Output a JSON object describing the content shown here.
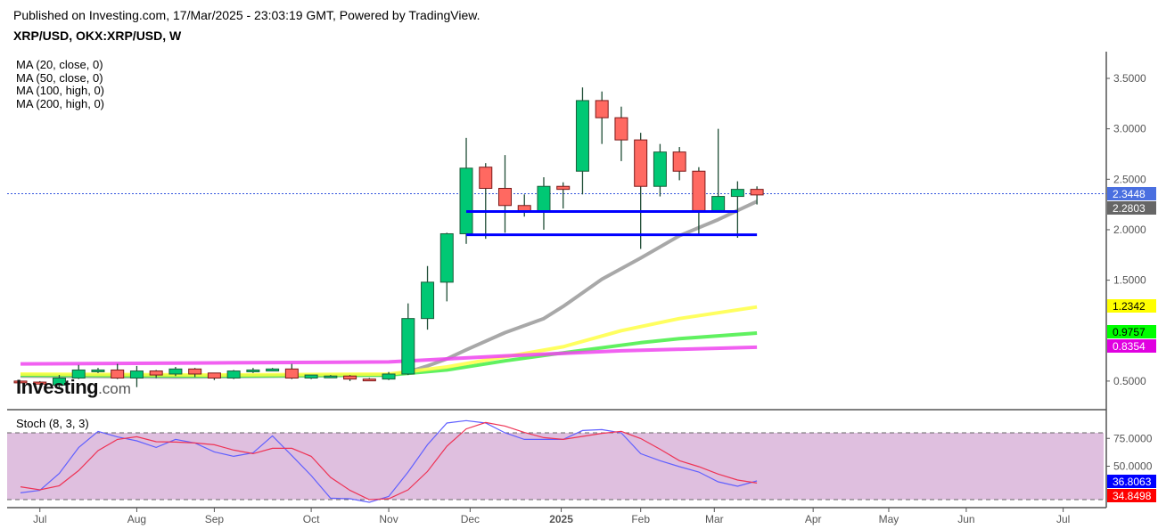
{
  "header": {
    "published": "Published on Investing.com, 17/Mar/2025 - 23:03:19 GMT, Powered by TradingView.",
    "symbol": "XRP/USD, OKX:XRP/USD, W"
  },
  "logo": {
    "brand": "Investing",
    "suffix": ".com"
  },
  "indicators": {
    "ma": [
      "MA (20, close, 0)",
      "MA (50, close, 0)",
      "MA (100, high, 0)",
      "MA (200, high, 0)"
    ],
    "stoch_title": "Stoch (8, 3, 3)"
  },
  "colors": {
    "up": "#00c874",
    "down": "#ff6961",
    "up_border": "#1b5e3b",
    "down_border": "#7b1a1a",
    "wick": "#1f4d36",
    "ma20": "#999999",
    "ma50": "#44ee44",
    "ma100": "#ffff44",
    "ma200": "#ee44ee",
    "support": "#0000ff",
    "stoch_k": "#6060ff",
    "stoch_d": "#ee3355",
    "stoch_bg": "#dfbfdf"
  },
  "chart_data": [
    {
      "type": "candlestick",
      "title": "XRP/USD, OKX:XRP/USD, W",
      "ylim": [
        0.35,
        3.75
      ],
      "y_ticks": [
        "3.5000",
        "3.0000",
        "2.5000",
        "2.0000",
        "1.5000",
        "0.5000"
      ],
      "y_tick_values": [
        3.5,
        3.0,
        2.5,
        2.0,
        1.5,
        0.5
      ],
      "x_labels": [
        {
          "label": "Jul",
          "week": 1
        },
        {
          "label": "Aug",
          "week": 6
        },
        {
          "label": "Sep",
          "week": 10
        },
        {
          "label": "Oct",
          "week": 15
        },
        {
          "label": "Nov",
          "week": 19
        },
        {
          "label": "Dec",
          "week": 23.2
        },
        {
          "label": "2025",
          "week": 27.9,
          "bold": true
        },
        {
          "label": "Feb",
          "week": 32
        },
        {
          "label": "Mar",
          "week": 35.8
        },
        {
          "label": "Apr",
          "week": 40.9
        },
        {
          "label": "May",
          "week": 44.8
        },
        {
          "label": "Jun",
          "week": 48.8
        },
        {
          "label": "Jul",
          "week": 53.8
        }
      ],
      "ohlc": [
        [
          0.5,
          0.5,
          0.48,
          0.49
        ],
        [
          0.49,
          0.5,
          0.46,
          0.47
        ],
        [
          0.46,
          0.56,
          0.43,
          0.53
        ],
        [
          0.53,
          0.66,
          0.52,
          0.61
        ],
        [
          0.61,
          0.63,
          0.58,
          0.61
        ],
        [
          0.61,
          0.67,
          0.52,
          0.53
        ],
        [
          0.53,
          0.65,
          0.44,
          0.6
        ],
        [
          0.6,
          0.61,
          0.53,
          0.56
        ],
        [
          0.57,
          0.64,
          0.55,
          0.62
        ],
        [
          0.62,
          0.63,
          0.54,
          0.57
        ],
        [
          0.58,
          0.58,
          0.51,
          0.53
        ],
        [
          0.53,
          0.61,
          0.52,
          0.6
        ],
        [
          0.6,
          0.63,
          0.58,
          0.61
        ],
        [
          0.6,
          0.63,
          0.6,
          0.62
        ],
        [
          0.62,
          0.67,
          0.52,
          0.53
        ],
        [
          0.53,
          0.56,
          0.52,
          0.56
        ],
        [
          0.55,
          0.56,
          0.54,
          0.55
        ],
        [
          0.55,
          0.56,
          0.5,
          0.52
        ],
        [
          0.52,
          0.53,
          0.51,
          0.51
        ],
        [
          0.52,
          0.59,
          0.51,
          0.57
        ],
        [
          0.57,
          1.27,
          0.56,
          1.12
        ],
        [
          1.12,
          1.64,
          1.01,
          1.48
        ],
        [
          1.48,
          1.97,
          1.29,
          1.96
        ],
        [
          1.96,
          2.91,
          1.86,
          2.61
        ],
        [
          2.62,
          2.66,
          1.91,
          2.41
        ],
        [
          2.41,
          2.74,
          1.97,
          2.24
        ],
        [
          2.24,
          2.35,
          2.13,
          2.18
        ],
        [
          2.18,
          2.52,
          2.0,
          2.43
        ],
        [
          2.43,
          2.47,
          2.21,
          2.4
        ],
        [
          2.58,
          3.41,
          2.35,
          3.28
        ],
        [
          3.28,
          3.37,
          2.85,
          3.11
        ],
        [
          3.11,
          3.22,
          2.68,
          2.89
        ],
        [
          2.89,
          2.96,
          1.81,
          2.43
        ],
        [
          2.43,
          2.85,
          2.33,
          2.77
        ],
        [
          2.77,
          2.82,
          2.49,
          2.58
        ],
        [
          2.58,
          2.62,
          1.96,
          2.19
        ],
        [
          2.19,
          3.0,
          2.19,
          2.33
        ],
        [
          2.33,
          2.48,
          1.92,
          2.4
        ],
        [
          2.4,
          2.43,
          2.25,
          2.3448
        ]
      ],
      "ma_series": [
        {
          "name": "MA (20, close, 0)",
          "color_key": "ma20",
          "last": "2.2803",
          "points": [
            [
              0,
              0.55
            ],
            [
              8,
              0.54
            ],
            [
              14,
              0.55
            ],
            [
              19,
              0.56
            ],
            [
              20,
              0.59
            ],
            [
              21,
              0.65
            ],
            [
              22,
              0.72
            ],
            [
              23,
              0.81
            ],
            [
              25,
              0.98
            ],
            [
              27,
              1.12
            ],
            [
              28,
              1.24
            ],
            [
              30,
              1.51
            ],
            [
              32,
              1.72
            ],
            [
              34,
              1.94
            ],
            [
              36,
              2.1
            ],
            [
              38,
              2.2803
            ]
          ]
        },
        {
          "name": "MA (50, close, 0)",
          "color_key": "ma50",
          "last": "0.9757",
          "points": [
            [
              0,
              0.56
            ],
            [
              10,
              0.55
            ],
            [
              19,
              0.56
            ],
            [
              22,
              0.61
            ],
            [
              25,
              0.7
            ],
            [
              28,
              0.78
            ],
            [
              32,
              0.88
            ],
            [
              34,
              0.92
            ],
            [
              38,
              0.9757
            ]
          ]
        },
        {
          "name": "MA (100, high, 0)",
          "color_key": "ma100",
          "last": "1.2342",
          "points": [
            [
              0,
              0.57
            ],
            [
              10,
              0.56
            ],
            [
              19,
              0.57
            ],
            [
              22,
              0.64
            ],
            [
              25,
              0.74
            ],
            [
              28,
              0.84
            ],
            [
              31,
              1.0
            ],
            [
              34,
              1.12
            ],
            [
              38,
              1.2342
            ]
          ]
        },
        {
          "name": "MA (200, high, 0)",
          "color_key": "ma200",
          "last": "0.8354",
          "points": [
            [
              0,
              0.67
            ],
            [
              10,
              0.68
            ],
            [
              19,
              0.69
            ],
            [
              25,
              0.75
            ],
            [
              31,
              0.8
            ],
            [
              38,
              0.8354
            ]
          ]
        }
      ],
      "support_lines": [
        {
          "price": 2.18,
          "from_week": 23,
          "to_week": 37
        },
        {
          "price": 1.95,
          "from_week": 23,
          "to_week": 38
        }
      ],
      "last_price": "2.3448",
      "last_price_value": 2.3448
    },
    {
      "type": "line",
      "title": "Stoch (8, 3, 3)",
      "ylim": [
        0,
        99
      ],
      "bands": [
        20,
        80
      ],
      "y_ticks": [
        "75.0000",
        "50.0000"
      ],
      "y_tick_values": [
        75,
        50
      ],
      "series": [
        {
          "name": "%K",
          "color_key": "stoch_k",
          "last": "36.8063",
          "values": [
            26.1,
            28.3,
            43.5,
            66.7,
            81.3,
            76.3,
            72.8,
            66.9,
            74.1,
            70.9,
            62.9,
            58.9,
            62.1,
            77.3,
            59.5,
            41.6,
            21.3,
            20.8,
            17.6,
            22.9,
            44.8,
            69.3,
            88.8,
            91.0,
            88.8,
            80.0,
            74.1,
            74.1,
            74.1,
            82.1,
            82.9,
            80.0,
            61.3,
            55.0,
            49.6,
            44.8,
            36.0,
            32.0,
            36.8063
          ]
        },
        {
          "name": "%D",
          "color_key": "stoch_d",
          "last": "34.8498",
          "values": [
            31.5,
            28.8,
            32.5,
            46.1,
            64.0,
            74.1,
            76.5,
            72.0,
            71.7,
            70.9,
            69.3,
            64.5,
            61.3,
            66.1,
            66.1,
            58.9,
            40.0,
            28.3,
            20.0,
            20.8,
            28.8,
            45.3,
            68.0,
            83.5,
            89.3,
            86.1,
            80.3,
            75.7,
            74.1,
            76.8,
            79.5,
            81.3,
            74.9,
            65.3,
            55.0,
            49.6,
            43.0,
            37.6,
            34.8498
          ]
        }
      ]
    }
  ]
}
